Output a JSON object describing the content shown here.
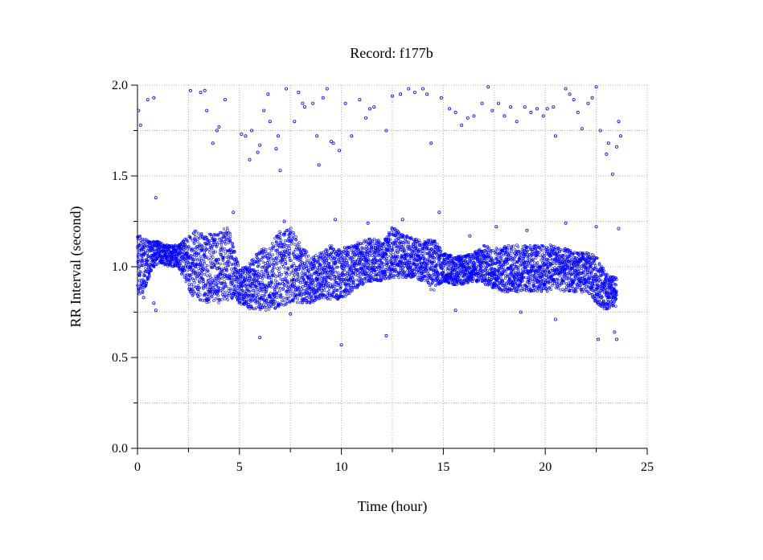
{
  "chart_data": {
    "type": "scatter",
    "title": "Record:  f177b",
    "xlabel": "Time (hour)",
    "ylabel": "RR Interval (second)",
    "xlim": [
      0,
      25
    ],
    "ylim": [
      0,
      2
    ],
    "x_ticks": [
      0,
      5,
      10,
      15,
      20,
      25
    ],
    "x_tick_labels": [
      "0",
      "5",
      "10",
      "15",
      "20",
      "25"
    ],
    "y_ticks": [
      0,
      0.5,
      1,
      1.5,
      2
    ],
    "y_tick_labels": [
      "0.0",
      "0.5",
      "1.0",
      "1.5",
      "2.0"
    ],
    "grid": true,
    "grid_style": "dotted",
    "marker": "open-circle",
    "series": [
      {
        "color": "#0000ff",
        "band": [
          [
            0.0,
            0.84,
            1.18
          ],
          [
            0.3,
            0.86,
            1.16
          ],
          [
            0.6,
            0.95,
            1.14
          ],
          [
            1.0,
            1.02,
            1.14
          ],
          [
            1.5,
            1.0,
            1.12
          ],
          [
            2.0,
            1.0,
            1.12
          ],
          [
            2.4,
            0.9,
            1.16
          ],
          [
            2.8,
            0.82,
            1.2
          ],
          [
            3.5,
            0.8,
            1.18
          ],
          [
            4.0,
            0.8,
            1.2
          ],
          [
            4.5,
            0.82,
            1.22
          ],
          [
            5.0,
            0.8,
            0.98
          ],
          [
            5.5,
            0.76,
            1.02
          ],
          [
            6.0,
            0.76,
            1.1
          ],
          [
            6.5,
            0.76,
            1.12
          ],
          [
            7.0,
            0.78,
            1.2
          ],
          [
            7.5,
            0.8,
            1.22
          ],
          [
            8.0,
            0.8,
            1.12
          ],
          [
            8.5,
            0.8,
            1.06
          ],
          [
            9.0,
            0.82,
            1.08
          ],
          [
            9.5,
            0.82,
            1.12
          ],
          [
            10.0,
            0.82,
            1.1
          ],
          [
            10.5,
            0.86,
            1.12
          ],
          [
            11.0,
            0.9,
            1.14
          ],
          [
            11.5,
            0.92,
            1.16
          ],
          [
            12.0,
            0.92,
            1.14
          ],
          [
            12.5,
            0.94,
            1.22
          ],
          [
            13.0,
            0.94,
            1.18
          ],
          [
            13.5,
            0.94,
            1.16
          ],
          [
            14.0,
            0.92,
            1.14
          ],
          [
            14.5,
            0.86,
            1.16
          ],
          [
            15.0,
            0.92,
            1.08
          ],
          [
            15.5,
            0.9,
            1.06
          ],
          [
            16.0,
            0.9,
            1.06
          ],
          [
            16.5,
            0.92,
            1.08
          ],
          [
            17.0,
            0.9,
            1.12
          ],
          [
            17.5,
            0.88,
            1.1
          ],
          [
            18.0,
            0.86,
            1.12
          ],
          [
            18.5,
            0.86,
            1.12
          ],
          [
            19.0,
            0.86,
            1.12
          ],
          [
            19.5,
            0.86,
            1.12
          ],
          [
            20.0,
            0.86,
            1.12
          ],
          [
            20.5,
            0.88,
            1.12
          ],
          [
            21.0,
            0.86,
            1.1
          ],
          [
            21.5,
            0.86,
            1.08
          ],
          [
            22.0,
            0.86,
            1.08
          ],
          [
            22.5,
            0.8,
            1.06
          ],
          [
            23.0,
            0.76,
            0.96
          ],
          [
            23.5,
            0.78,
            0.94
          ]
        ],
        "points": [
          [
            0.05,
            1.86
          ],
          [
            0.15,
            1.78
          ],
          [
            0.5,
            1.92
          ],
          [
            0.8,
            1.93
          ],
          [
            0.9,
            1.38
          ],
          [
            0.8,
            0.8
          ],
          [
            0.9,
            0.76
          ],
          [
            2.6,
            1.97
          ],
          [
            3.1,
            1.96
          ],
          [
            3.3,
            1.97
          ],
          [
            3.4,
            1.86
          ],
          [
            3.7,
            1.68
          ],
          [
            3.9,
            1.75
          ],
          [
            4.0,
            1.77
          ],
          [
            4.3,
            1.92
          ],
          [
            5.1,
            1.73
          ],
          [
            5.3,
            1.72
          ],
          [
            5.5,
            1.59
          ],
          [
            5.6,
            1.75
          ],
          [
            5.9,
            1.63
          ],
          [
            6.0,
            1.67
          ],
          [
            6.2,
            1.86
          ],
          [
            6.4,
            1.95
          ],
          [
            6.5,
            1.8
          ],
          [
            6.8,
            1.65
          ],
          [
            6.9,
            1.72
          ],
          [
            7.0,
            1.53
          ],
          [
            7.3,
            1.98
          ],
          [
            7.7,
            1.8
          ],
          [
            7.9,
            1.96
          ],
          [
            8.1,
            1.9
          ],
          [
            8.2,
            1.88
          ],
          [
            8.6,
            1.9
          ],
          [
            8.8,
            1.72
          ],
          [
            8.9,
            1.56
          ],
          [
            9.1,
            1.93
          ],
          [
            9.3,
            1.98
          ],
          [
            9.5,
            1.69
          ],
          [
            9.6,
            1.68
          ],
          [
            9.9,
            1.64
          ],
          [
            10.2,
            1.9
          ],
          [
            10.5,
            1.72
          ],
          [
            10.9,
            1.92
          ],
          [
            11.2,
            1.82
          ],
          [
            11.4,
            1.87
          ],
          [
            11.6,
            1.88
          ],
          [
            12.2,
            1.75
          ],
          [
            12.5,
            1.94
          ],
          [
            12.9,
            1.95
          ],
          [
            13.3,
            1.98
          ],
          [
            13.6,
            1.96
          ],
          [
            14.0,
            1.98
          ],
          [
            14.2,
            1.95
          ],
          [
            14.4,
            1.68
          ],
          [
            14.9,
            1.93
          ],
          [
            15.3,
            1.87
          ],
          [
            15.6,
            1.85
          ],
          [
            15.9,
            1.78
          ],
          [
            16.2,
            1.82
          ],
          [
            16.5,
            1.83
          ],
          [
            16.9,
            1.9
          ],
          [
            17.2,
            1.99
          ],
          [
            17.4,
            1.86
          ],
          [
            17.7,
            1.9
          ],
          [
            18.0,
            1.83
          ],
          [
            18.3,
            1.88
          ],
          [
            18.6,
            1.8
          ],
          [
            19.0,
            1.88
          ],
          [
            19.3,
            1.85
          ],
          [
            19.6,
            1.87
          ],
          [
            19.9,
            1.83
          ],
          [
            20.1,
            1.87
          ],
          [
            20.4,
            1.88
          ],
          [
            20.5,
            1.72
          ],
          [
            21.0,
            1.98
          ],
          [
            21.2,
            1.95
          ],
          [
            21.4,
            1.92
          ],
          [
            21.6,
            1.85
          ],
          [
            21.8,
            1.76
          ],
          [
            22.1,
            1.9
          ],
          [
            22.3,
            1.93
          ],
          [
            22.5,
            1.99
          ],
          [
            22.7,
            1.75
          ],
          [
            23.0,
            1.62
          ],
          [
            23.1,
            1.68
          ],
          [
            23.3,
            1.51
          ],
          [
            23.5,
            1.66
          ],
          [
            23.6,
            1.8
          ],
          [
            23.7,
            1.72
          ],
          [
            10.0,
            0.57
          ],
          [
            12.2,
            0.62
          ],
          [
            6.0,
            0.61
          ],
          [
            22.6,
            0.6
          ],
          [
            23.5,
            0.6
          ],
          [
            23.4,
            0.64
          ],
          [
            7.5,
            0.74
          ],
          [
            15.6,
            0.76
          ],
          [
            18.8,
            0.75
          ],
          [
            20.5,
            0.71
          ],
          [
            0.3,
            0.83
          ],
          [
            23.6,
            1.21
          ],
          [
            4.7,
            1.3
          ],
          [
            14.8,
            1.3
          ],
          [
            13.0,
            1.26
          ],
          [
            11.3,
            1.24
          ],
          [
            7.2,
            1.25
          ],
          [
            9.7,
            1.26
          ],
          [
            17.6,
            1.22
          ],
          [
            21.0,
            1.24
          ],
          [
            22.5,
            1.22
          ],
          [
            19.1,
            1.2
          ],
          [
            16.3,
            1.17
          ]
        ]
      }
    ]
  }
}
